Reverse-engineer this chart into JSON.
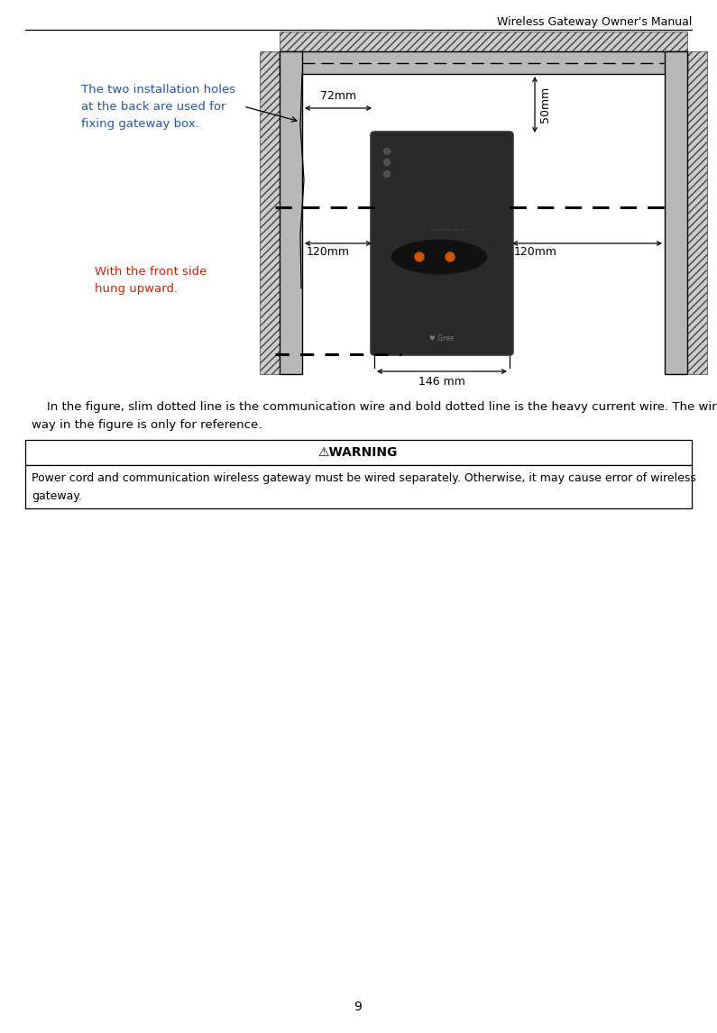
{
  "title": "Wireless Gateway Owner's Manual",
  "page_number": "9",
  "label1": "The two installation holes\nat the back are used for\nfixing gateway box.",
  "label2": "With the front side\nhung upward.",
  "dim_72mm": "72mm",
  "dim_50mm": "50mm",
  "dim_120mm_left": "120mm",
  "dim_120mm_right": "120mm",
  "dim_146mm": "146 mm",
  "warning_title": "⚠WARNING",
  "warning_text": "Power cord and communication wireless gateway must be wired separately. Otherwise, it may cause error of wireless\ngateway.",
  "caption_line1": "    In the figure, slim dotted line is the communication wire and bold dotted line is the heavy current wire. The wiring",
  "caption_line2": "way in the figure is only for reference.",
  "background": "#ffffff",
  "text_color": "#000000",
  "blue_text": "#2255aa",
  "red_text": "#cc2200",
  "wall_gray": "#b8b8b8",
  "wall_dark": "#888888",
  "hatch_color": "#cccccc",
  "dim_color": "#000000",
  "device_body": "#2a2a2a",
  "device_edge": "#1a1a1a"
}
